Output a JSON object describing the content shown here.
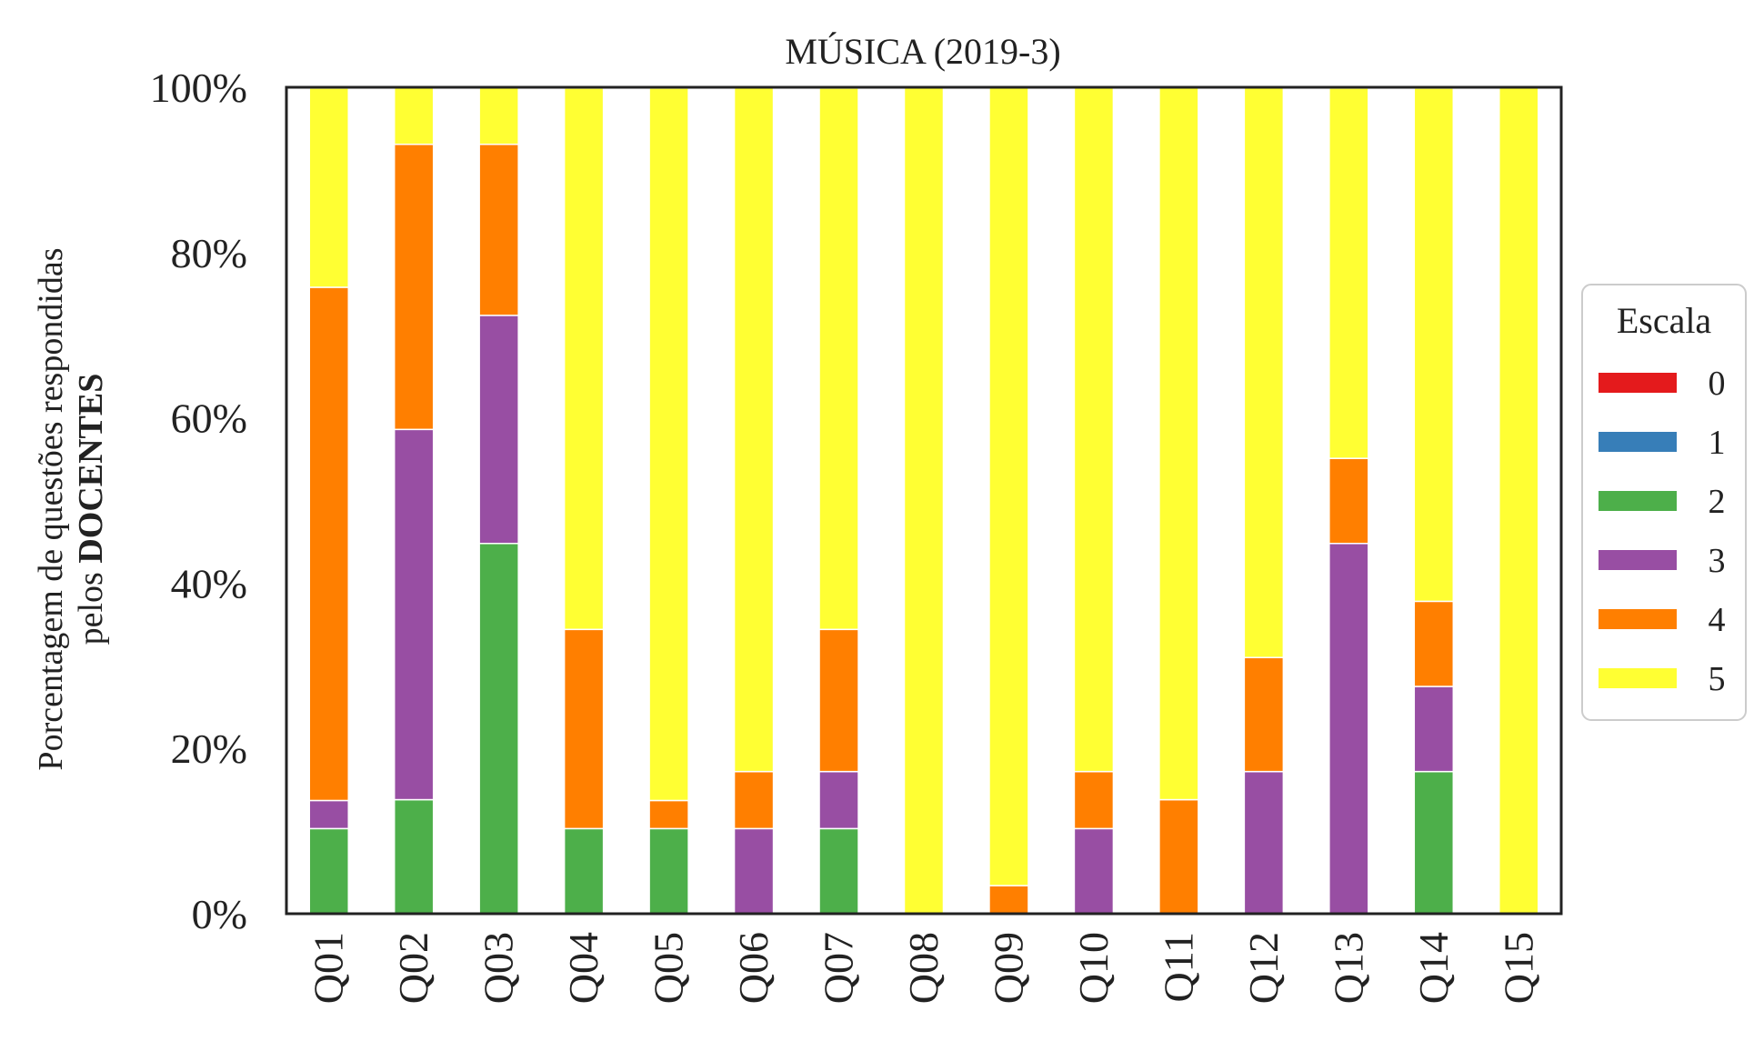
{
  "chart_data": {
    "type": "bar",
    "stacked": true,
    "title": "MÚSICA (2019-3)",
    "ylabel_line1": "Porcentagem de questões respondidas",
    "ylabel_line2_prefix": "pelos ",
    "ylabel_line2_bold": "DOCENTES",
    "ylim": [
      0,
      100
    ],
    "yticks": [
      "0%",
      "20%",
      "40%",
      "60%",
      "80%",
      "100%"
    ],
    "ytick_values": [
      0,
      20,
      40,
      60,
      80,
      100
    ],
    "grid": false,
    "legend_title": "Escala",
    "legend_position": "right",
    "categories": [
      "Q01",
      "Q02",
      "Q03",
      "Q04",
      "Q05",
      "Q06",
      "Q07",
      "Q08",
      "Q09",
      "Q10",
      "Q11",
      "Q12",
      "Q13",
      "Q14",
      "Q15"
    ],
    "series": [
      {
        "name": "0",
        "color": "#e41a1c",
        "values": [
          0,
          0,
          0,
          0,
          0,
          0,
          0,
          0,
          0,
          0,
          0,
          0,
          0,
          0,
          0
        ]
      },
      {
        "name": "1",
        "color": "#377eb8",
        "values": [
          0,
          0,
          0,
          0,
          0,
          0,
          0,
          0,
          0,
          0,
          0,
          0,
          0,
          0,
          0
        ]
      },
      {
        "name": "2",
        "color": "#4daf4a",
        "values": [
          10.3,
          13.8,
          44.8,
          10.3,
          10.3,
          0,
          10.3,
          0,
          0,
          0,
          0,
          0,
          0,
          17.2,
          0
        ]
      },
      {
        "name": "3",
        "color": "#984ea3",
        "values": [
          3.4,
          44.8,
          27.6,
          0,
          0,
          10.3,
          6.9,
          0,
          0,
          10.3,
          0,
          17.2,
          44.8,
          10.3,
          0
        ]
      },
      {
        "name": "4",
        "color": "#ff7f00",
        "values": [
          62.1,
          34.5,
          20.7,
          24.1,
          3.4,
          6.9,
          17.2,
          0,
          3.4,
          6.9,
          13.8,
          13.8,
          10.3,
          10.3,
          0
        ]
      },
      {
        "name": "5",
        "color": "#ffff33",
        "values": [
          24.1,
          6.9,
          6.9,
          65.5,
          86.2,
          82.8,
          65.5,
          100,
          96.6,
          82.8,
          86.2,
          69.0,
          44.8,
          62.1,
          100
        ]
      }
    ]
  }
}
